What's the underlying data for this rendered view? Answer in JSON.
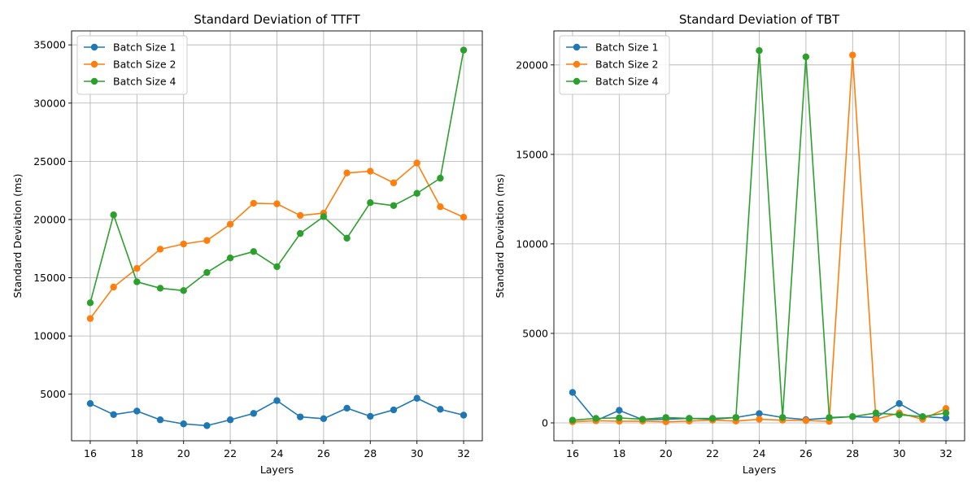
{
  "chart_data": [
    {
      "type": "line",
      "title": "Standard Deviation of TTFT",
      "xlabel": "Layers",
      "ylabel": "Standard Deviation (ms)",
      "x": [
        16,
        17,
        18,
        19,
        20,
        21,
        22,
        23,
        24,
        25,
        26,
        27,
        28,
        29,
        30,
        31,
        32
      ],
      "xlim": [
        15.2,
        32.8
      ],
      "ylim": [
        1000,
        36200
      ],
      "xticks": [
        16,
        18,
        20,
        22,
        24,
        26,
        28,
        30,
        32
      ],
      "yticks": [
        5000,
        10000,
        15000,
        20000,
        25000,
        30000,
        35000
      ],
      "grid": true,
      "legend_position": "top-left",
      "series": [
        {
          "name": "Batch Size 1",
          "color": "#1f77b4",
          "values": [
            4200,
            3250,
            3550,
            2800,
            2450,
            2300,
            2800,
            3350,
            4450,
            3050,
            2900,
            3800,
            3100,
            3650,
            4650,
            3700,
            3200
          ]
        },
        {
          "name": "Batch Size 2",
          "color": "#ff7f0e",
          "values": [
            11500,
            14200,
            15800,
            17450,
            17900,
            18200,
            19600,
            21400,
            21350,
            20350,
            20550,
            24000,
            24150,
            23150,
            24850,
            21100,
            20200
          ]
        },
        {
          "name": "Batch Size 4",
          "color": "#2ca02c",
          "values": [
            12850,
            20400,
            14650,
            14100,
            13900,
            15450,
            16700,
            17250,
            15950,
            18800,
            20250,
            18400,
            21450,
            21200,
            22250,
            23550,
            34550
          ]
        }
      ]
    },
    {
      "type": "line",
      "title": "Standard Deviation of TBT",
      "xlabel": "Layers",
      "ylabel": "Standard Deviation (ms)",
      "x": [
        16,
        17,
        18,
        19,
        20,
        21,
        22,
        23,
        24,
        25,
        26,
        27,
        28,
        29,
        30,
        31,
        32
      ],
      "xlim": [
        15.2,
        32.8
      ],
      "ylim": [
        -1000,
        21900
      ],
      "xticks": [
        16,
        18,
        20,
        22,
        24,
        26,
        28,
        30,
        32
      ],
      "yticks": [
        0,
        5000,
        10000,
        15000,
        20000
      ],
      "grid": true,
      "legend_position": "top-left",
      "series": [
        {
          "name": "Batch Size 1",
          "color": "#1f77b4",
          "values": [
            1700,
            120,
            700,
            180,
            200,
            250,
            200,
            300,
            520,
            300,
            180,
            270,
            350,
            300,
            1080,
            350,
            270
          ]
        },
        {
          "name": "Batch Size 2",
          "color": "#ff7f0e",
          "values": [
            60,
            120,
            90,
            100,
            60,
            100,
            150,
            100,
            200,
            150,
            130,
            80,
            20550,
            200,
            550,
            200,
            800
          ]
        },
        {
          "name": "Batch Size 4",
          "color": "#2ca02c",
          "values": [
            150,
            250,
            280,
            200,
            300,
            250,
            250,
            300,
            20800,
            300,
            20450,
            300,
            350,
            550,
            450,
            350,
            550
          ]
        }
      ]
    }
  ]
}
